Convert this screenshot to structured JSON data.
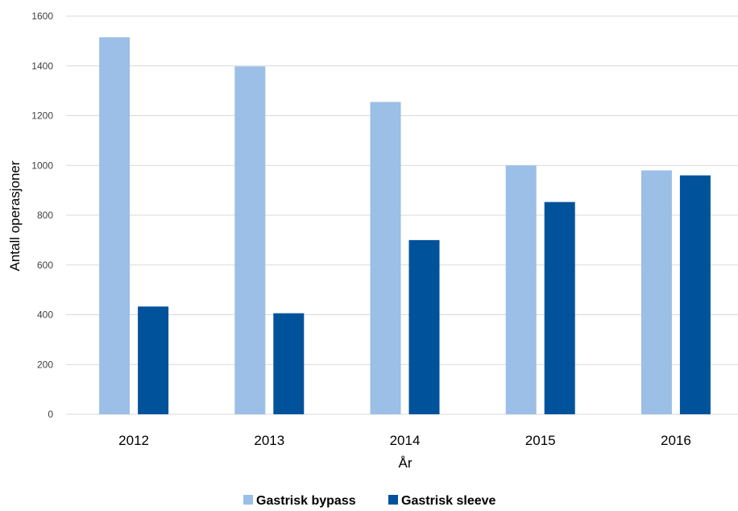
{
  "chart_data": {
    "type": "bar",
    "categories": [
      "2012",
      "2013",
      "2014",
      "2015",
      "2016"
    ],
    "series": [
      {
        "name": "Gastrisk bypass",
        "values": [
          1515,
          1398,
          1255,
          1000,
          980
        ],
        "color": "#9bbfe6"
      },
      {
        "name": "Gastrisk sleeve",
        "values": [
          433,
          406,
          700,
          853,
          960
        ],
        "color": "#00529b"
      }
    ],
    "xlabel": "År",
    "ylabel": "Antall operasjoner",
    "ylim": [
      0,
      1600
    ],
    "yticks": [
      0,
      200,
      400,
      600,
      800,
      1000,
      1200,
      1400,
      1600
    ],
    "grid": true,
    "legend_position": "bottom"
  }
}
